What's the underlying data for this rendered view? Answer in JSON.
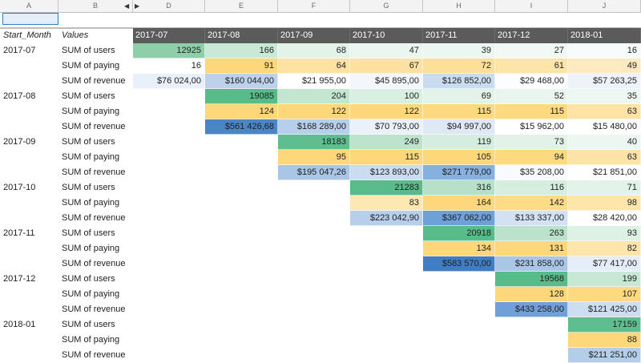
{
  "column_letters": [
    "A",
    "B",
    "D",
    "E",
    "F",
    "G",
    "H",
    "I",
    "J"
  ],
  "header": {
    "start_month": "Start_Month",
    "values": "Values",
    "months": [
      "2017-07",
      "2017-08",
      "2017-09",
      "2017-10",
      "2017-11",
      "2017-12",
      "2018-01"
    ]
  },
  "colors": {
    "green": "#57bb8a",
    "light_green": "#c9e8d6",
    "yellow": "#fdd77a",
    "light_yellow": "#fde9b5",
    "blue": "#6fa0d8",
    "light_blue": "#d3e2f3",
    "dark_blue": "#4a85c8",
    "header_bg": "#5b5b5b"
  },
  "rows": [
    {
      "start": "2017-07",
      "label": "SUM of users",
      "cells": [
        {
          "v": "12925",
          "c": "#8ecfa9"
        },
        {
          "v": "166",
          "c": "#c9e8d6"
        },
        {
          "v": "68",
          "c": "#e3f3ea"
        },
        {
          "v": "47",
          "c": "#eaf6ef"
        },
        {
          "v": "39",
          "c": "#edf7f1"
        },
        {
          "v": "27",
          "c": "#f2f9f5"
        },
        {
          "v": "16",
          "c": "#f7fbf9"
        }
      ]
    },
    {
      "start": "",
      "label": "SUM of paying",
      "cells": [
        {
          "v": "16",
          "c": "#ffffff"
        },
        {
          "v": "91",
          "c": "#fdd77a"
        },
        {
          "v": "64",
          "c": "#fde2a2"
        },
        {
          "v": "67",
          "c": "#fde1a0"
        },
        {
          "v": "72",
          "c": "#fddf98"
        },
        {
          "v": "61",
          "c": "#fde4a8"
        },
        {
          "v": "49",
          "c": "#fdeac0"
        }
      ]
    },
    {
      "start": "",
      "label": "SUM of revenue",
      "cells": [
        {
          "v": "$76 024,00",
          "c": "#e9f0f9"
        },
        {
          "v": "$160 044,00",
          "c": "#bcd2ec"
        },
        {
          "v": "$21 955,00",
          "c": "#ffffff"
        },
        {
          "v": "$45 895,00",
          "c": "#f3f7fc"
        },
        {
          "v": "$126 852,00",
          "c": "#cadcf0"
        },
        {
          "v": "$29 468,00",
          "c": "#fcfdfe"
        },
        {
          "v": "$57 263,25",
          "c": "#eef3fa"
        }
      ]
    },
    {
      "start": "2017-08",
      "label": "SUM of users",
      "cells": [
        null,
        {
          "v": "19085",
          "c": "#57bb8a"
        },
        {
          "v": "204",
          "c": "#c3e6d1"
        },
        {
          "v": "100",
          "c": "#d9efe2"
        },
        {
          "v": "69",
          "c": "#e3f3ea"
        },
        {
          "v": "52",
          "c": "#e9f5ee"
        },
        {
          "v": "35",
          "c": "#eef8f2"
        }
      ]
    },
    {
      "start": "",
      "label": "SUM of paying",
      "cells": [
        null,
        {
          "v": "124",
          "c": "#fdd77a"
        },
        {
          "v": "122",
          "c": "#fdd77a"
        },
        {
          "v": "122",
          "c": "#fdd77a"
        },
        {
          "v": "115",
          "c": "#fdd980"
        },
        {
          "v": "115",
          "c": "#fdd980"
        },
        {
          "v": "63",
          "c": "#fde3a5"
        }
      ]
    },
    {
      "start": "",
      "label": "SUM of revenue",
      "cells": [
        null,
        {
          "v": "$561 426,68",
          "c": "#4a85c8"
        },
        {
          "v": "$168 289,00",
          "c": "#b7cfea"
        },
        {
          "v": "$70 793,00",
          "c": "#ebf1f9"
        },
        {
          "v": "$94 997,00",
          "c": "#dfe9f6"
        },
        {
          "v": "$15 962,00",
          "c": "#ffffff"
        },
        {
          "v": "$15 480,00",
          "c": "#ffffff"
        }
      ]
    },
    {
      "start": "2017-09",
      "label": "SUM of users",
      "cells": [
        null,
        null,
        {
          "v": "18183",
          "c": "#5fbe90"
        },
        {
          "v": "249",
          "c": "#bde3cc"
        },
        {
          "v": "119",
          "c": "#d4ede0"
        },
        {
          "v": "73",
          "c": "#e2f2e9"
        },
        {
          "v": "40",
          "c": "#edf7f1"
        }
      ]
    },
    {
      "start": "",
      "label": "SUM of paying",
      "cells": [
        null,
        null,
        {
          "v": "95",
          "c": "#fdd77a"
        },
        {
          "v": "115",
          "c": "#fdd77a"
        },
        {
          "v": "105",
          "c": "#fdd77a"
        },
        {
          "v": "94",
          "c": "#fdd97f"
        },
        {
          "v": "63",
          "c": "#fde3a5"
        }
      ]
    },
    {
      "start": "",
      "label": "SUM of revenue",
      "cells": [
        null,
        null,
        {
          "v": "$195 047,26",
          "c": "#a9c6e6"
        },
        {
          "v": "$123 893,00",
          "c": "#cbdcf0"
        },
        {
          "v": "$271 779,00",
          "c": "#86b0de"
        },
        {
          "v": "$35 208,00",
          "c": "#f8fafd"
        },
        {
          "v": "$21 851,00",
          "c": "#ffffff"
        }
      ]
    },
    {
      "start": "2017-10",
      "label": "SUM of users",
      "cells": [
        null,
        null,
        null,
        {
          "v": "21283",
          "c": "#57bb8a"
        },
        {
          "v": "316",
          "c": "#b7e0c8"
        },
        {
          "v": "116",
          "c": "#d5eee0"
        },
        {
          "v": "71",
          "c": "#e2f3e9"
        }
      ]
    },
    {
      "start": "",
      "label": "SUM of paying",
      "cells": [
        null,
        null,
        null,
        {
          "v": "83",
          "c": "#fde7b2"
        },
        {
          "v": "164",
          "c": "#fdd77a"
        },
        {
          "v": "142",
          "c": "#fddb87"
        },
        {
          "v": "98",
          "c": "#fde5ab"
        }
      ]
    },
    {
      "start": "",
      "label": "SUM of revenue",
      "cells": [
        null,
        null,
        null,
        {
          "v": "$223 042,90",
          "c": "#b7cfea"
        },
        {
          "v": "$367 062,00",
          "c": "#6fa0d8"
        },
        {
          "v": "$133 337,00",
          "c": "#d2e1f3"
        },
        {
          "v": "$28 420,00",
          "c": "#ffffff"
        }
      ]
    },
    {
      "start": "2017-11",
      "label": "SUM of users",
      "cells": [
        null,
        null,
        null,
        null,
        {
          "v": "20918",
          "c": "#57bb8a"
        },
        {
          "v": "263",
          "c": "#bbe2cb"
        },
        {
          "v": "93",
          "c": "#ddf1e5"
        }
      ]
    },
    {
      "start": "",
      "label": "SUM of paying",
      "cells": [
        null,
        null,
        null,
        null,
        {
          "v": "134",
          "c": "#fdd77a"
        },
        {
          "v": "131",
          "c": "#fdd77a"
        },
        {
          "v": "82",
          "c": "#fde5ab"
        }
      ]
    },
    {
      "start": "",
      "label": "SUM of revenue",
      "cells": [
        null,
        null,
        null,
        null,
        {
          "v": "$583 570,00",
          "c": "#3f7ec4"
        },
        {
          "v": "$231 858,00",
          "c": "#a9c6e6"
        },
        {
          "v": "$77 417,00",
          "c": "#e5edf8"
        }
      ]
    },
    {
      "start": "2017-12",
      "label": "SUM of users",
      "cells": [
        null,
        null,
        null,
        null,
        null,
        {
          "v": "19568",
          "c": "#57bb8a"
        },
        {
          "v": "199",
          "c": "#c7e8d4"
        }
      ]
    },
    {
      "start": "",
      "label": "SUM of paying",
      "cells": [
        null,
        null,
        null,
        null,
        null,
        {
          "v": "128",
          "c": "#fdd77a"
        },
        {
          "v": "107",
          "c": "#fdd980"
        }
      ]
    },
    {
      "start": "",
      "label": "SUM of revenue",
      "cells": [
        null,
        null,
        null,
        null,
        null,
        {
          "v": "$433 258,00",
          "c": "#6fa0d8"
        },
        {
          "v": "$121 425,00",
          "c": "#cedef2"
        }
      ]
    },
    {
      "start": "2018-01",
      "label": "SUM of users",
      "cells": [
        null,
        null,
        null,
        null,
        null,
        null,
        {
          "v": "17159",
          "c": "#5fbe90"
        }
      ]
    },
    {
      "start": "",
      "label": "SUM of paying",
      "cells": [
        null,
        null,
        null,
        null,
        null,
        null,
        {
          "v": "88",
          "c": "#fdd77a"
        }
      ]
    },
    {
      "start": "",
      "label": "SUM of revenue",
      "cells": [
        null,
        null,
        null,
        null,
        null,
        null,
        {
          "v": "$211 251,00",
          "c": "#b4cde9"
        }
      ]
    }
  ]
}
